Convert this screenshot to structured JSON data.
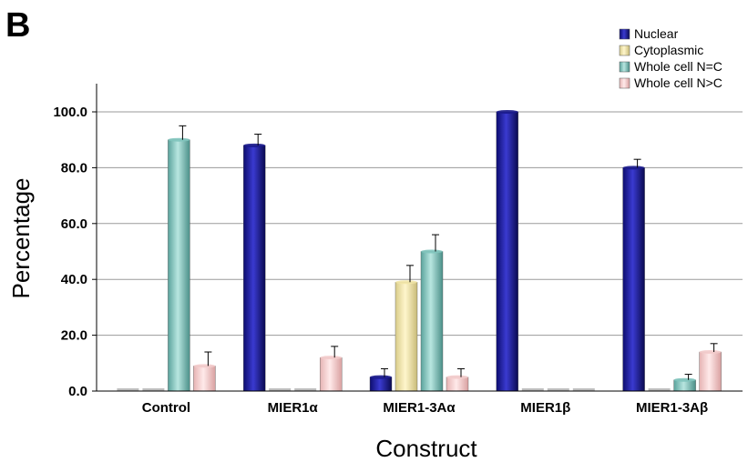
{
  "panel_label": "B",
  "chart_data": {
    "type": "bar",
    "title": "",
    "xlabel": "Construct",
    "ylabel": "Percentage",
    "ylim": [
      0,
      100
    ],
    "yticks": [
      "0.0",
      "20.0",
      "40.0",
      "60.0",
      "80.0",
      "100.0"
    ],
    "categories": [
      "Control",
      "MIER1α",
      "MIER1-3Aα",
      "MIER1β",
      "MIER1-3Aβ"
    ],
    "series": [
      {
        "name": "Nuclear",
        "color": "#1a1a8c",
        "values": [
          0,
          88,
          5,
          100,
          80
        ],
        "errors": [
          0,
          4,
          3,
          0,
          3
        ]
      },
      {
        "name": "Cytoplasmic",
        "color": "#f2e6a6",
        "values": [
          0,
          0,
          39,
          0,
          0
        ],
        "errors": [
          0,
          0,
          6,
          0,
          0
        ]
      },
      {
        "name": "Whole cell N=C",
        "color": "#7fc4bc",
        "values": [
          90,
          0,
          50,
          0,
          4
        ],
        "errors": [
          5,
          0,
          6,
          0,
          2
        ]
      },
      {
        "name": "Whole cell N>C",
        "color": "#f4cccc",
        "values": [
          9,
          12,
          5,
          0,
          14
        ],
        "errors": [
          5,
          4,
          3,
          0,
          3
        ]
      }
    ],
    "grid": true,
    "legend_position": "top-right"
  }
}
